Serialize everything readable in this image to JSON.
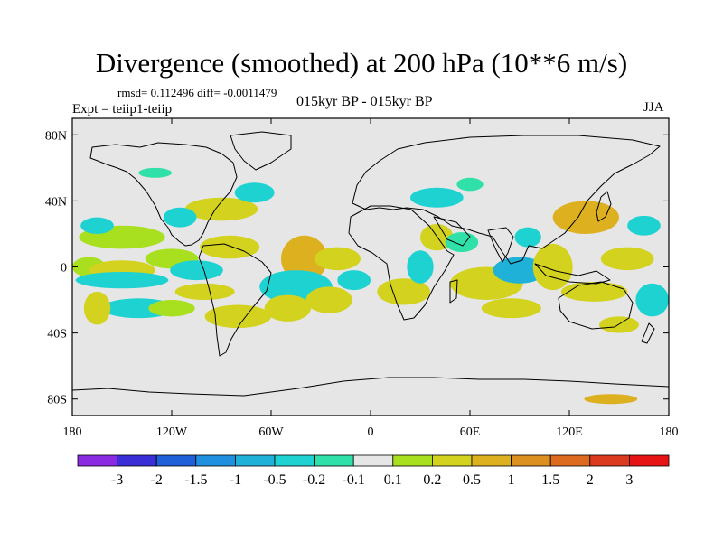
{
  "figure": {
    "title": "Divergence (smoothed) at 200 hPa (10**6 m/s)",
    "stats_line": "rmsd= 0.112496 diff= -0.0011479",
    "left_subtitle": "Expt = teiip1-teiip",
    "center_subtitle": "015kyr BP - 015kyr BP",
    "right_subtitle": "JJA"
  },
  "map": {
    "projection": "cylindrical-equidistant",
    "lon_range": [
      -180,
      180
    ],
    "lat_range": [
      -90,
      90
    ],
    "background_color": "#e6e6e6",
    "coastlines": true
  },
  "axes": {
    "x_ticks": [
      {
        "value": -180,
        "label": "180"
      },
      {
        "value": -120,
        "label": "120W"
      },
      {
        "value": -60,
        "label": "60W"
      },
      {
        "value": 0,
        "label": "0"
      },
      {
        "value": 60,
        "label": "60E"
      },
      {
        "value": 120,
        "label": "120E"
      },
      {
        "value": 180,
        "label": "180"
      }
    ],
    "y_ticks": [
      {
        "value": 80,
        "label": "80N"
      },
      {
        "value": 40,
        "label": "40N"
      },
      {
        "value": 0,
        "label": "0"
      },
      {
        "value": -40,
        "label": "40S"
      },
      {
        "value": -80,
        "label": "80S"
      }
    ]
  },
  "colorbar": {
    "colors": [
      "#8a2be2",
      "#3a2fd6",
      "#1f5fd8",
      "#1f8fe0",
      "#1fb1d8",
      "#1fd2d2",
      "#2fe0a8",
      "#e6e6e6",
      "#a8e01f",
      "#d2d21f",
      "#dcb01f",
      "#dc901f",
      "#dc6a1f",
      "#dc3a1f",
      "#e61414"
    ],
    "labels": [
      "-3",
      "-2",
      "-1.5",
      "-1",
      "-0.5",
      "-0.2",
      "-0.1",
      "0.1",
      "0.2",
      "0.5",
      "1",
      "1.5",
      "2",
      "3"
    ]
  },
  "chart_data": {
    "type": "heatmap",
    "title": "Divergence (smoothed) at 200 hPa (10**6 m/s)",
    "levels": [
      -3,
      -2,
      -1.5,
      -1,
      -0.5,
      -0.2,
      -0.1,
      0.1,
      0.2,
      0.5,
      1,
      1.5,
      2,
      3
    ],
    "features": [
      {
        "lon": -150,
        "lat": 18,
        "rx": 26,
        "ry": 7,
        "value": 0.15
      },
      {
        "lon": -170,
        "lat": 0,
        "rx": 10,
        "ry": 6,
        "value": 0.15
      },
      {
        "lon": -150,
        "lat": -2,
        "rx": 20,
        "ry": 6,
        "value": 0.4
      },
      {
        "lon": -120,
        "lat": 5,
        "rx": 16,
        "ry": 6,
        "value": 0.15
      },
      {
        "lon": -165,
        "lat": 25,
        "rx": 10,
        "ry": 5,
        "value": -0.3
      },
      {
        "lon": -140,
        "lat": -25,
        "rx": 22,
        "ry": 6,
        "value": -0.4
      },
      {
        "lon": -120,
        "lat": -25,
        "rx": 14,
        "ry": 5,
        "value": 0.15
      },
      {
        "lon": -165,
        "lat": -25,
        "rx": 8,
        "ry": 10,
        "value": 0.2
      },
      {
        "lon": -150,
        "lat": -8,
        "rx": 28,
        "ry": 5,
        "value": -0.3
      },
      {
        "lon": -105,
        "lat": -2,
        "rx": 16,
        "ry": 6,
        "value": -0.3
      },
      {
        "lon": -85,
        "lat": 12,
        "rx": 18,
        "ry": 7,
        "value": 0.2
      },
      {
        "lon": -90,
        "lat": 35,
        "rx": 22,
        "ry": 7,
        "value": 0.2
      },
      {
        "lon": -115,
        "lat": 30,
        "rx": 10,
        "ry": 6,
        "value": -0.3
      },
      {
        "lon": -70,
        "lat": 45,
        "rx": 12,
        "ry": 6,
        "value": -0.3
      },
      {
        "lon": -130,
        "lat": 57,
        "rx": 10,
        "ry": 3,
        "value": -0.2
      },
      {
        "lon": -100,
        "lat": -15,
        "rx": 18,
        "ry": 5,
        "value": 0.3
      },
      {
        "lon": -40,
        "lat": 5,
        "rx": 14,
        "ry": 14,
        "value": 0.6
      },
      {
        "lon": -20,
        "lat": 5,
        "rx": 14,
        "ry": 7,
        "value": 0.3
      },
      {
        "lon": -45,
        "lat": -12,
        "rx": 22,
        "ry": 10,
        "value": -0.5
      },
      {
        "lon": -80,
        "lat": -30,
        "rx": 20,
        "ry": 7,
        "value": 0.3
      },
      {
        "lon": -50,
        "lat": -25,
        "rx": 14,
        "ry": 8,
        "value": 0.2
      },
      {
        "lon": -25,
        "lat": -20,
        "rx": 14,
        "ry": 8,
        "value": 0.4
      },
      {
        "lon": -10,
        "lat": -8,
        "rx": 10,
        "ry": 6,
        "value": -0.3
      },
      {
        "lon": 40,
        "lat": 42,
        "rx": 16,
        "ry": 6,
        "value": -0.3
      },
      {
        "lon": 40,
        "lat": 18,
        "rx": 10,
        "ry": 8,
        "value": 0.3
      },
      {
        "lon": 55,
        "lat": 15,
        "rx": 10,
        "ry": 6,
        "value": -0.2
      },
      {
        "lon": 20,
        "lat": -15,
        "rx": 16,
        "ry": 8,
        "value": 0.3
      },
      {
        "lon": 30,
        "lat": 0,
        "rx": 8,
        "ry": 10,
        "value": -0.3
      },
      {
        "lon": 70,
        "lat": -10,
        "rx": 22,
        "ry": 10,
        "value": 0.3
      },
      {
        "lon": 90,
        "lat": -2,
        "rx": 16,
        "ry": 8,
        "value": -0.8
      },
      {
        "lon": 85,
        "lat": -25,
        "rx": 18,
        "ry": 6,
        "value": 0.2
      },
      {
        "lon": 130,
        "lat": 30,
        "rx": 20,
        "ry": 10,
        "value": 0.6
      },
      {
        "lon": 110,
        "lat": 0,
        "rx": 12,
        "ry": 14,
        "value": 0.4
      },
      {
        "lon": 135,
        "lat": -15,
        "rx": 20,
        "ry": 6,
        "value": 0.3
      },
      {
        "lon": 155,
        "lat": 5,
        "rx": 16,
        "ry": 7,
        "value": 0.3
      },
      {
        "lon": 165,
        "lat": 25,
        "rx": 10,
        "ry": 6,
        "value": -0.3
      },
      {
        "lon": 170,
        "lat": -20,
        "rx": 10,
        "ry": 10,
        "value": -0.4
      },
      {
        "lon": 95,
        "lat": 18,
        "rx": 8,
        "ry": 6,
        "value": -0.3
      },
      {
        "lon": 150,
        "lat": -35,
        "rx": 12,
        "ry": 5,
        "value": 0.2
      },
      {
        "lon": 60,
        "lat": 50,
        "rx": 8,
        "ry": 4,
        "value": -0.2
      },
      {
        "lon": 145,
        "lat": -80,
        "rx": 16,
        "ry": 3,
        "value": 0.6
      }
    ]
  }
}
